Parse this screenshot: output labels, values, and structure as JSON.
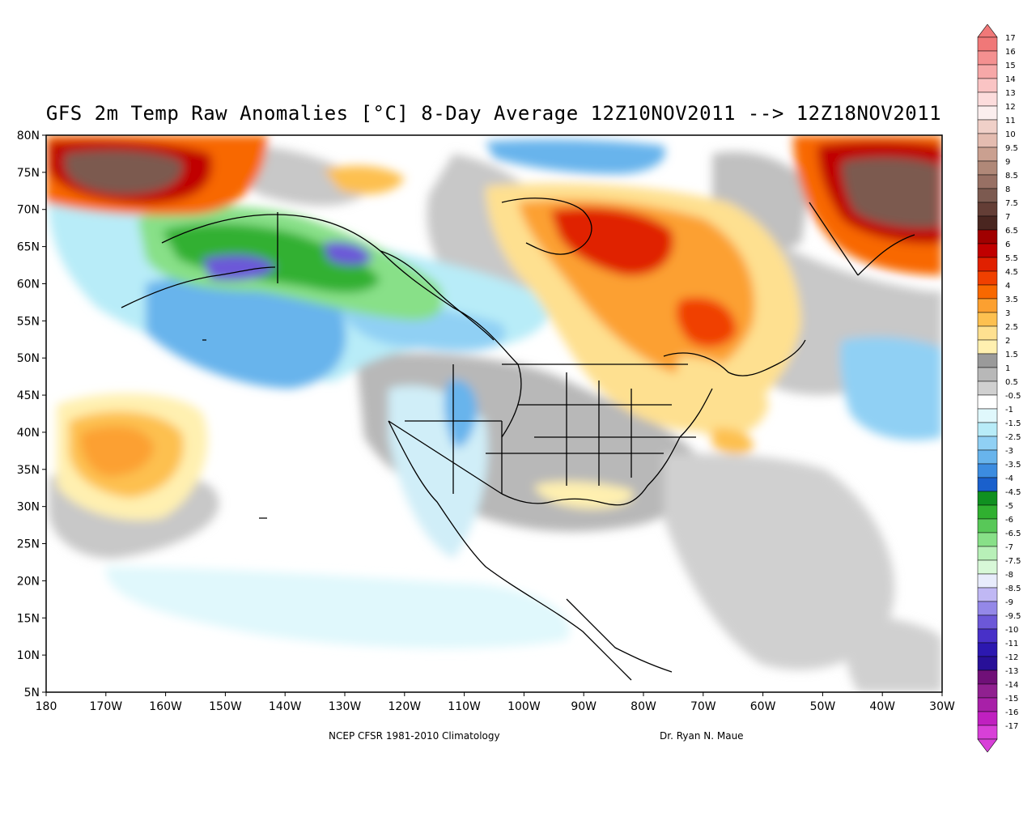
{
  "title": "GFS 2m Temp Raw Anomalies [°C] 8-Day Average 12Z10NOV2011 --> 12Z18NOV2011",
  "footer": {
    "climatology": "NCEP CFSR 1981-2010 Climatology",
    "author": "Dr. Ryan N. Maue"
  },
  "axes": {
    "lat_labels": [
      "80N",
      "75N",
      "70N",
      "65N",
      "60N",
      "55N",
      "50N",
      "45N",
      "40N",
      "35N",
      "30N",
      "25N",
      "20N",
      "15N",
      "10N",
      "5N"
    ],
    "lon_labels": [
      "180",
      "170W",
      "160W",
      "150W",
      "140W",
      "130W",
      "120W",
      "110W",
      "100W",
      "90W",
      "80W",
      "70W",
      "60W",
      "50W",
      "40W",
      "30W"
    ]
  },
  "colorbar": {
    "labels": [
      "17",
      "16",
      "15",
      "14",
      "13",
      "12",
      "11",
      "10",
      "9.5",
      "9",
      "8.5",
      "8",
      "7.5",
      "7",
      "6.5",
      "6",
      "5.5",
      "4.5",
      "4",
      "3.5",
      "3",
      "2.5",
      "2",
      "1.5",
      "1",
      "0.5",
      "-0.5",
      "-1",
      "-1.5",
      "-2.5",
      "-3",
      "-3.5",
      "-4",
      "-4.5",
      "-5",
      "-6",
      "-6.5",
      "-7",
      "-7.5",
      "-8",
      "-8.5",
      "-9",
      "-9.5",
      "-10",
      "-11",
      "-12",
      "-13",
      "-14",
      "-15",
      "-16",
      "-17"
    ],
    "colors": [
      "#f07878",
      "#f49090",
      "#f7a8a8",
      "#fac4c4",
      "#fcdcdc",
      "#fbeeee",
      "#f0d0c8",
      "#e4bcb0",
      "#caa090",
      "#b08878",
      "#987064",
      "#7c5a50",
      "#643e36",
      "#4a2620",
      "#a00000",
      "#c00000",
      "#e02000",
      "#f04000",
      "#f86800",
      "#fca030",
      "#fdc050",
      "#fee090",
      "#fff0b0",
      "#9a9a9a",
      "#b8b8b8",
      "#d0d0d0",
      "#ffffff",
      "#e0f8fc",
      "#b8ecf8",
      "#90d0f4",
      "#68b4ec",
      "#3c8ce0",
      "#1a60cc",
      "#109020",
      "#30b030",
      "#58c858",
      "#88e088",
      "#b8f0b8",
      "#d8f8d8",
      "#e8ecfc",
      "#c0b8f4",
      "#9488e8",
      "#6c58d8",
      "#4830c8",
      "#2c18b0",
      "#281098",
      "#701078",
      "#902090",
      "#a820a8",
      "#c020c0",
      "#d840d8"
    ],
    "top_color": "#f07878",
    "bottom_color": "#d840d8"
  }
}
